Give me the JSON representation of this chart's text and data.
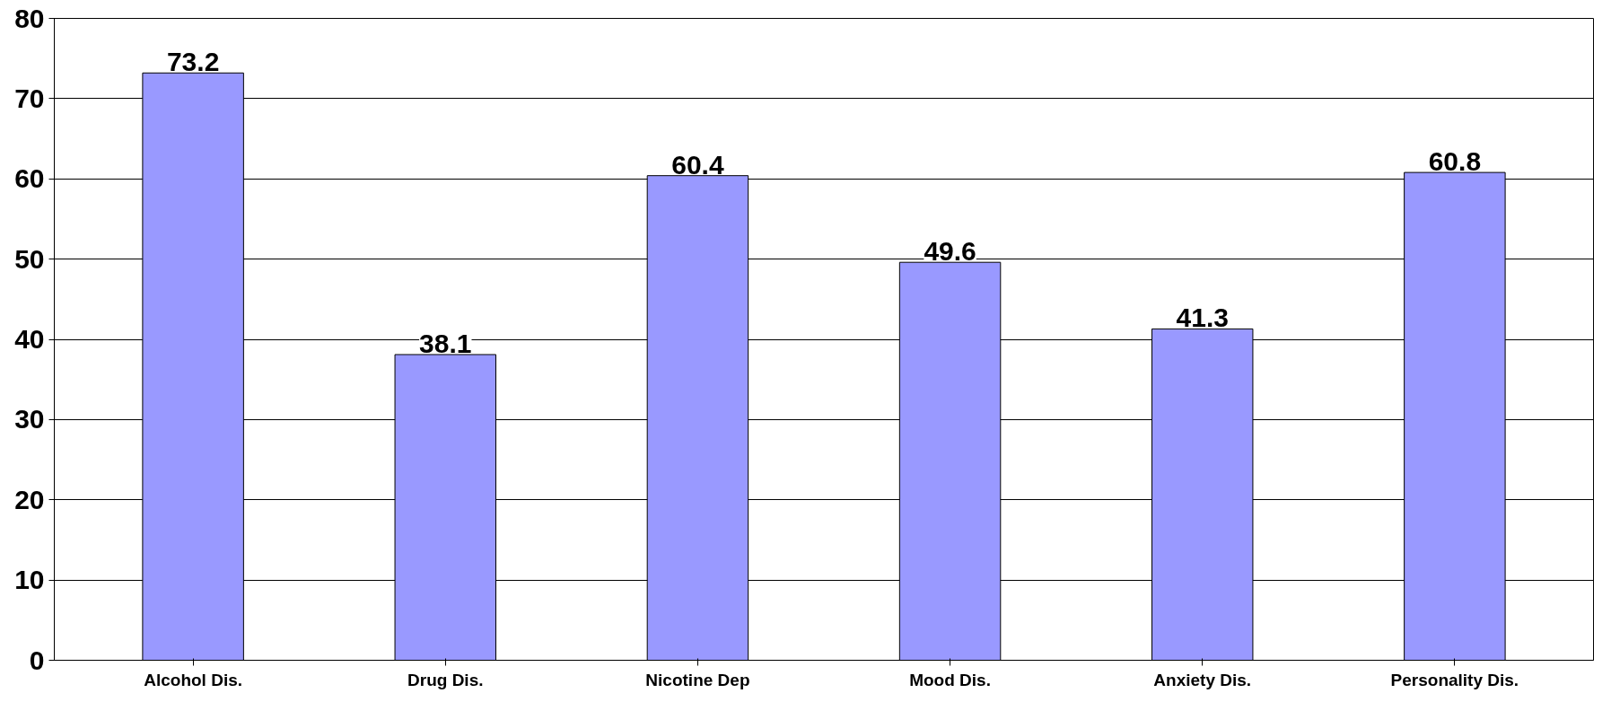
{
  "chart_data": {
    "type": "bar",
    "categories": [
      "Alcohol Dis.",
      "Drug Dis.",
      "Nicotine Dep",
      "Mood Dis.",
      "Anxiety Dis.",
      "Personality Dis."
    ],
    "values": [
      73.2,
      38.1,
      60.4,
      49.6,
      41.3,
      60.8
    ],
    "color": "#9999ff",
    "ylim": [
      0,
      80
    ],
    "yticks": [
      0,
      10,
      20,
      30,
      40,
      50,
      60,
      70,
      80
    ],
    "grid": "y",
    "data_labels": true
  }
}
